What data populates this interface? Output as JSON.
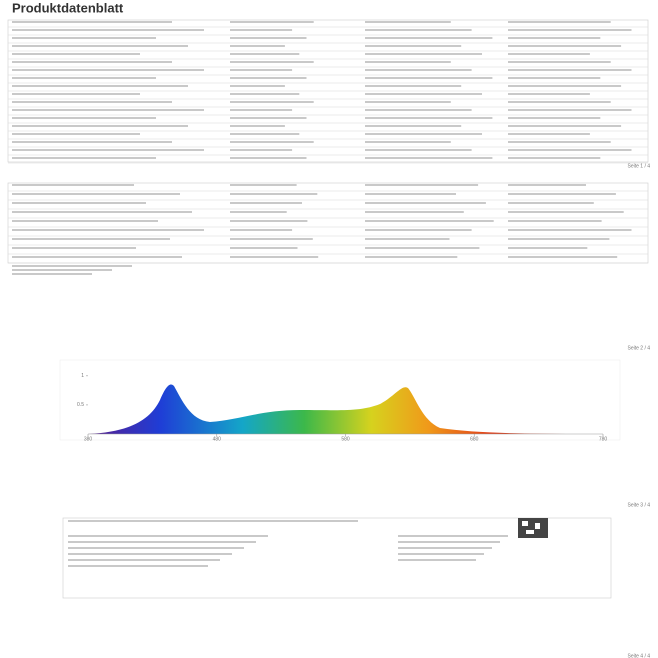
{
  "header": {
    "title": "Produktdatenblatt"
  },
  "pages": [
    {
      "footer": "Seite 1 / 4"
    },
    {
      "footer": "Seite 2 / 4"
    },
    {
      "footer": "Seite 3 / 4"
    },
    {
      "footer": "Seite 4 / 4"
    }
  ],
  "chart_data": {
    "type": "area",
    "xlim": [
      380,
      780
    ],
    "ylim": [
      0,
      1.1
    ],
    "xticks": [
      380,
      480,
      580,
      680,
      780
    ],
    "yticks": [
      0.5,
      1
    ]
  }
}
